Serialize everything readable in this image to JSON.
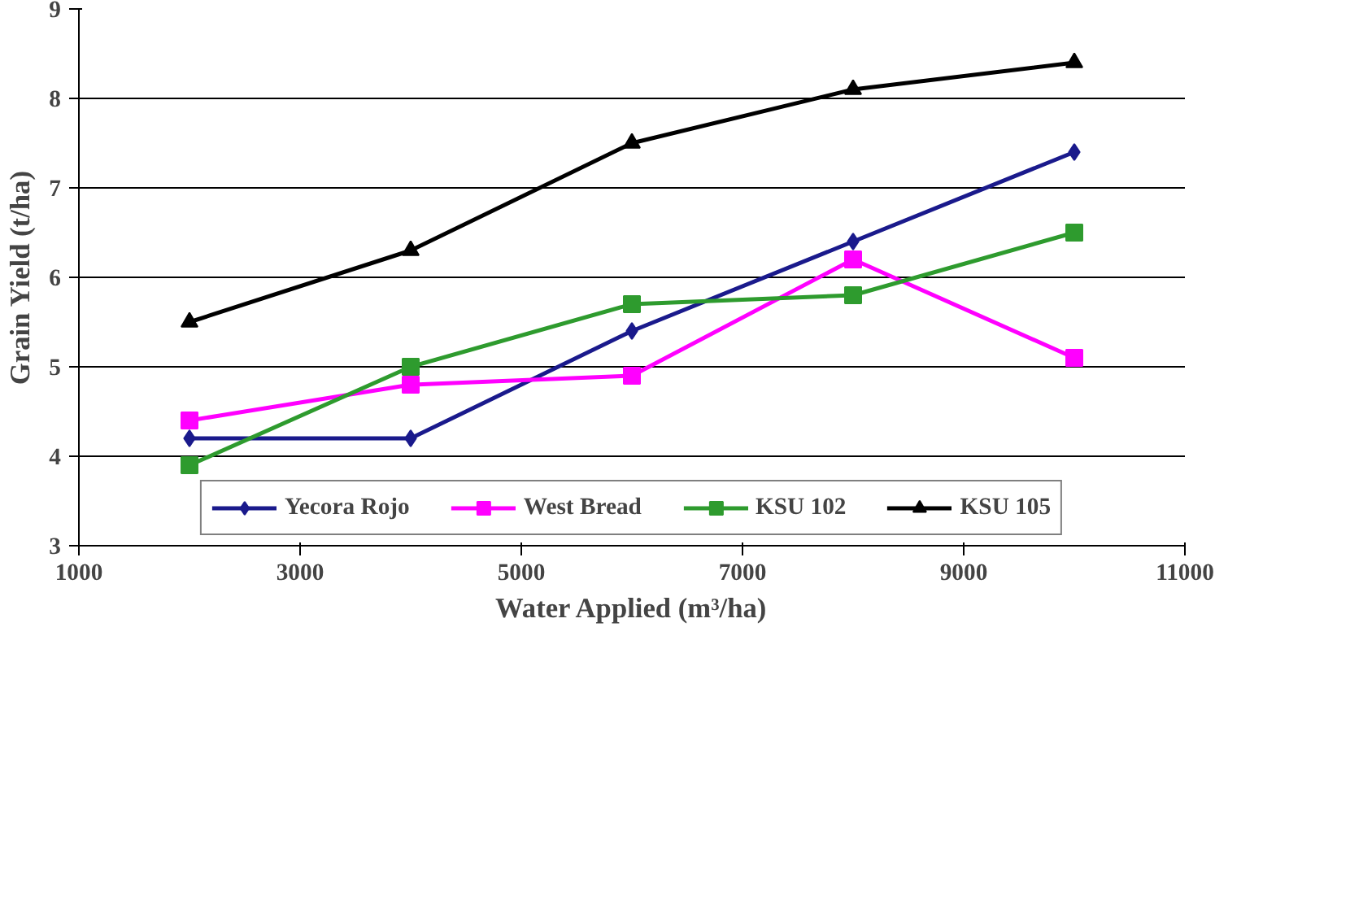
{
  "chart_data": {
    "type": "line",
    "xlabel": "Water Applied (m³/ha)",
    "ylabel": "Grain Yield (t/ha)",
    "x": [
      2000,
      4000,
      6000,
      8000,
      10000
    ],
    "series": [
      {
        "name": "Yecora Rojo",
        "color": "#1a1a8c",
        "marker": "diamond",
        "values": [
          4.2,
          4.2,
          5.4,
          6.4,
          7.4
        ]
      },
      {
        "name": "West Bread",
        "color": "#ff00ff",
        "marker": "square",
        "values": [
          4.4,
          4.8,
          4.9,
          6.2,
          5.1
        ]
      },
      {
        "name": "KSU 102",
        "color": "#2e9b2e",
        "marker": "square",
        "values": [
          3.9,
          5.0,
          5.7,
          5.8,
          6.5
        ]
      },
      {
        "name": "KSU 105",
        "color": "#000000",
        "marker": "triangle",
        "values": [
          5.5,
          6.3,
          7.5,
          8.1,
          8.4
        ]
      }
    ],
    "xlim": [
      1000,
      11000
    ],
    "xticks": [
      1000,
      3000,
      5000,
      7000,
      9000,
      11000
    ],
    "ylim": [
      3,
      9
    ],
    "yticks": [
      3,
      4,
      5,
      6,
      7,
      8,
      9
    ],
    "grid": "y",
    "legend": "bottom",
    "line_style": "solid"
  }
}
